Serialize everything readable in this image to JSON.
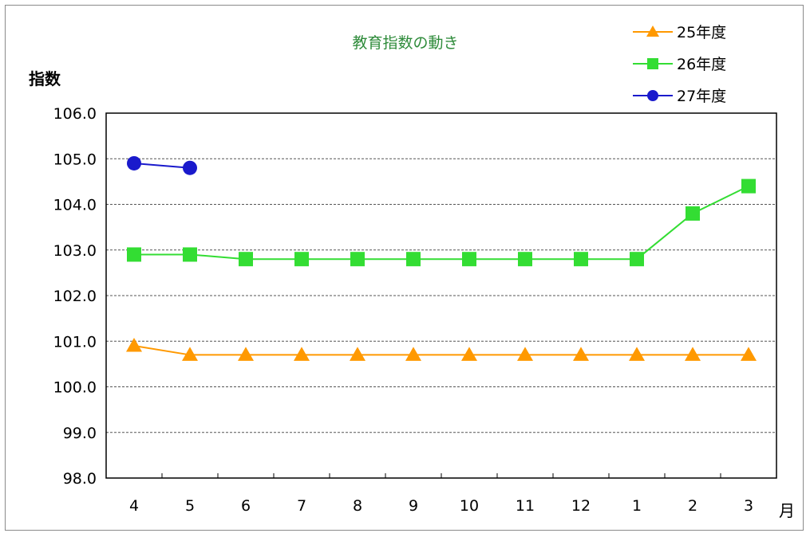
{
  "chart_data": {
    "type": "line",
    "title": "教育指数の動き",
    "ylabel": "指数",
    "xlabel": "月",
    "categories": [
      "4",
      "5",
      "6",
      "7",
      "8",
      "9",
      "10",
      "11",
      "12",
      "1",
      "2",
      "3"
    ],
    "ylim": [
      98.0,
      106.0
    ],
    "yticks": [
      "98.0",
      "99.0",
      "100.0",
      "101.0",
      "102.0",
      "103.0",
      "104.0",
      "105.0",
      "106.0"
    ],
    "grid": "horizontal-dashed",
    "legend_position": "top-right",
    "series": [
      {
        "name": "25年度",
        "color": "#ff9900",
        "marker": "triangle",
        "values": [
          100.9,
          100.7,
          100.7,
          100.7,
          100.7,
          100.7,
          100.7,
          100.7,
          100.7,
          100.7,
          100.7,
          100.7
        ]
      },
      {
        "name": "26年度",
        "color": "#33dd33",
        "marker": "square",
        "values": [
          102.9,
          102.9,
          102.8,
          102.8,
          102.8,
          102.8,
          102.8,
          102.8,
          102.8,
          102.8,
          103.8,
          104.4
        ]
      },
      {
        "name": "27年度",
        "color": "#1a1acc",
        "marker": "circle",
        "values": [
          104.9,
          104.8,
          null,
          null,
          null,
          null,
          null,
          null,
          null,
          null,
          null,
          null
        ]
      }
    ]
  }
}
